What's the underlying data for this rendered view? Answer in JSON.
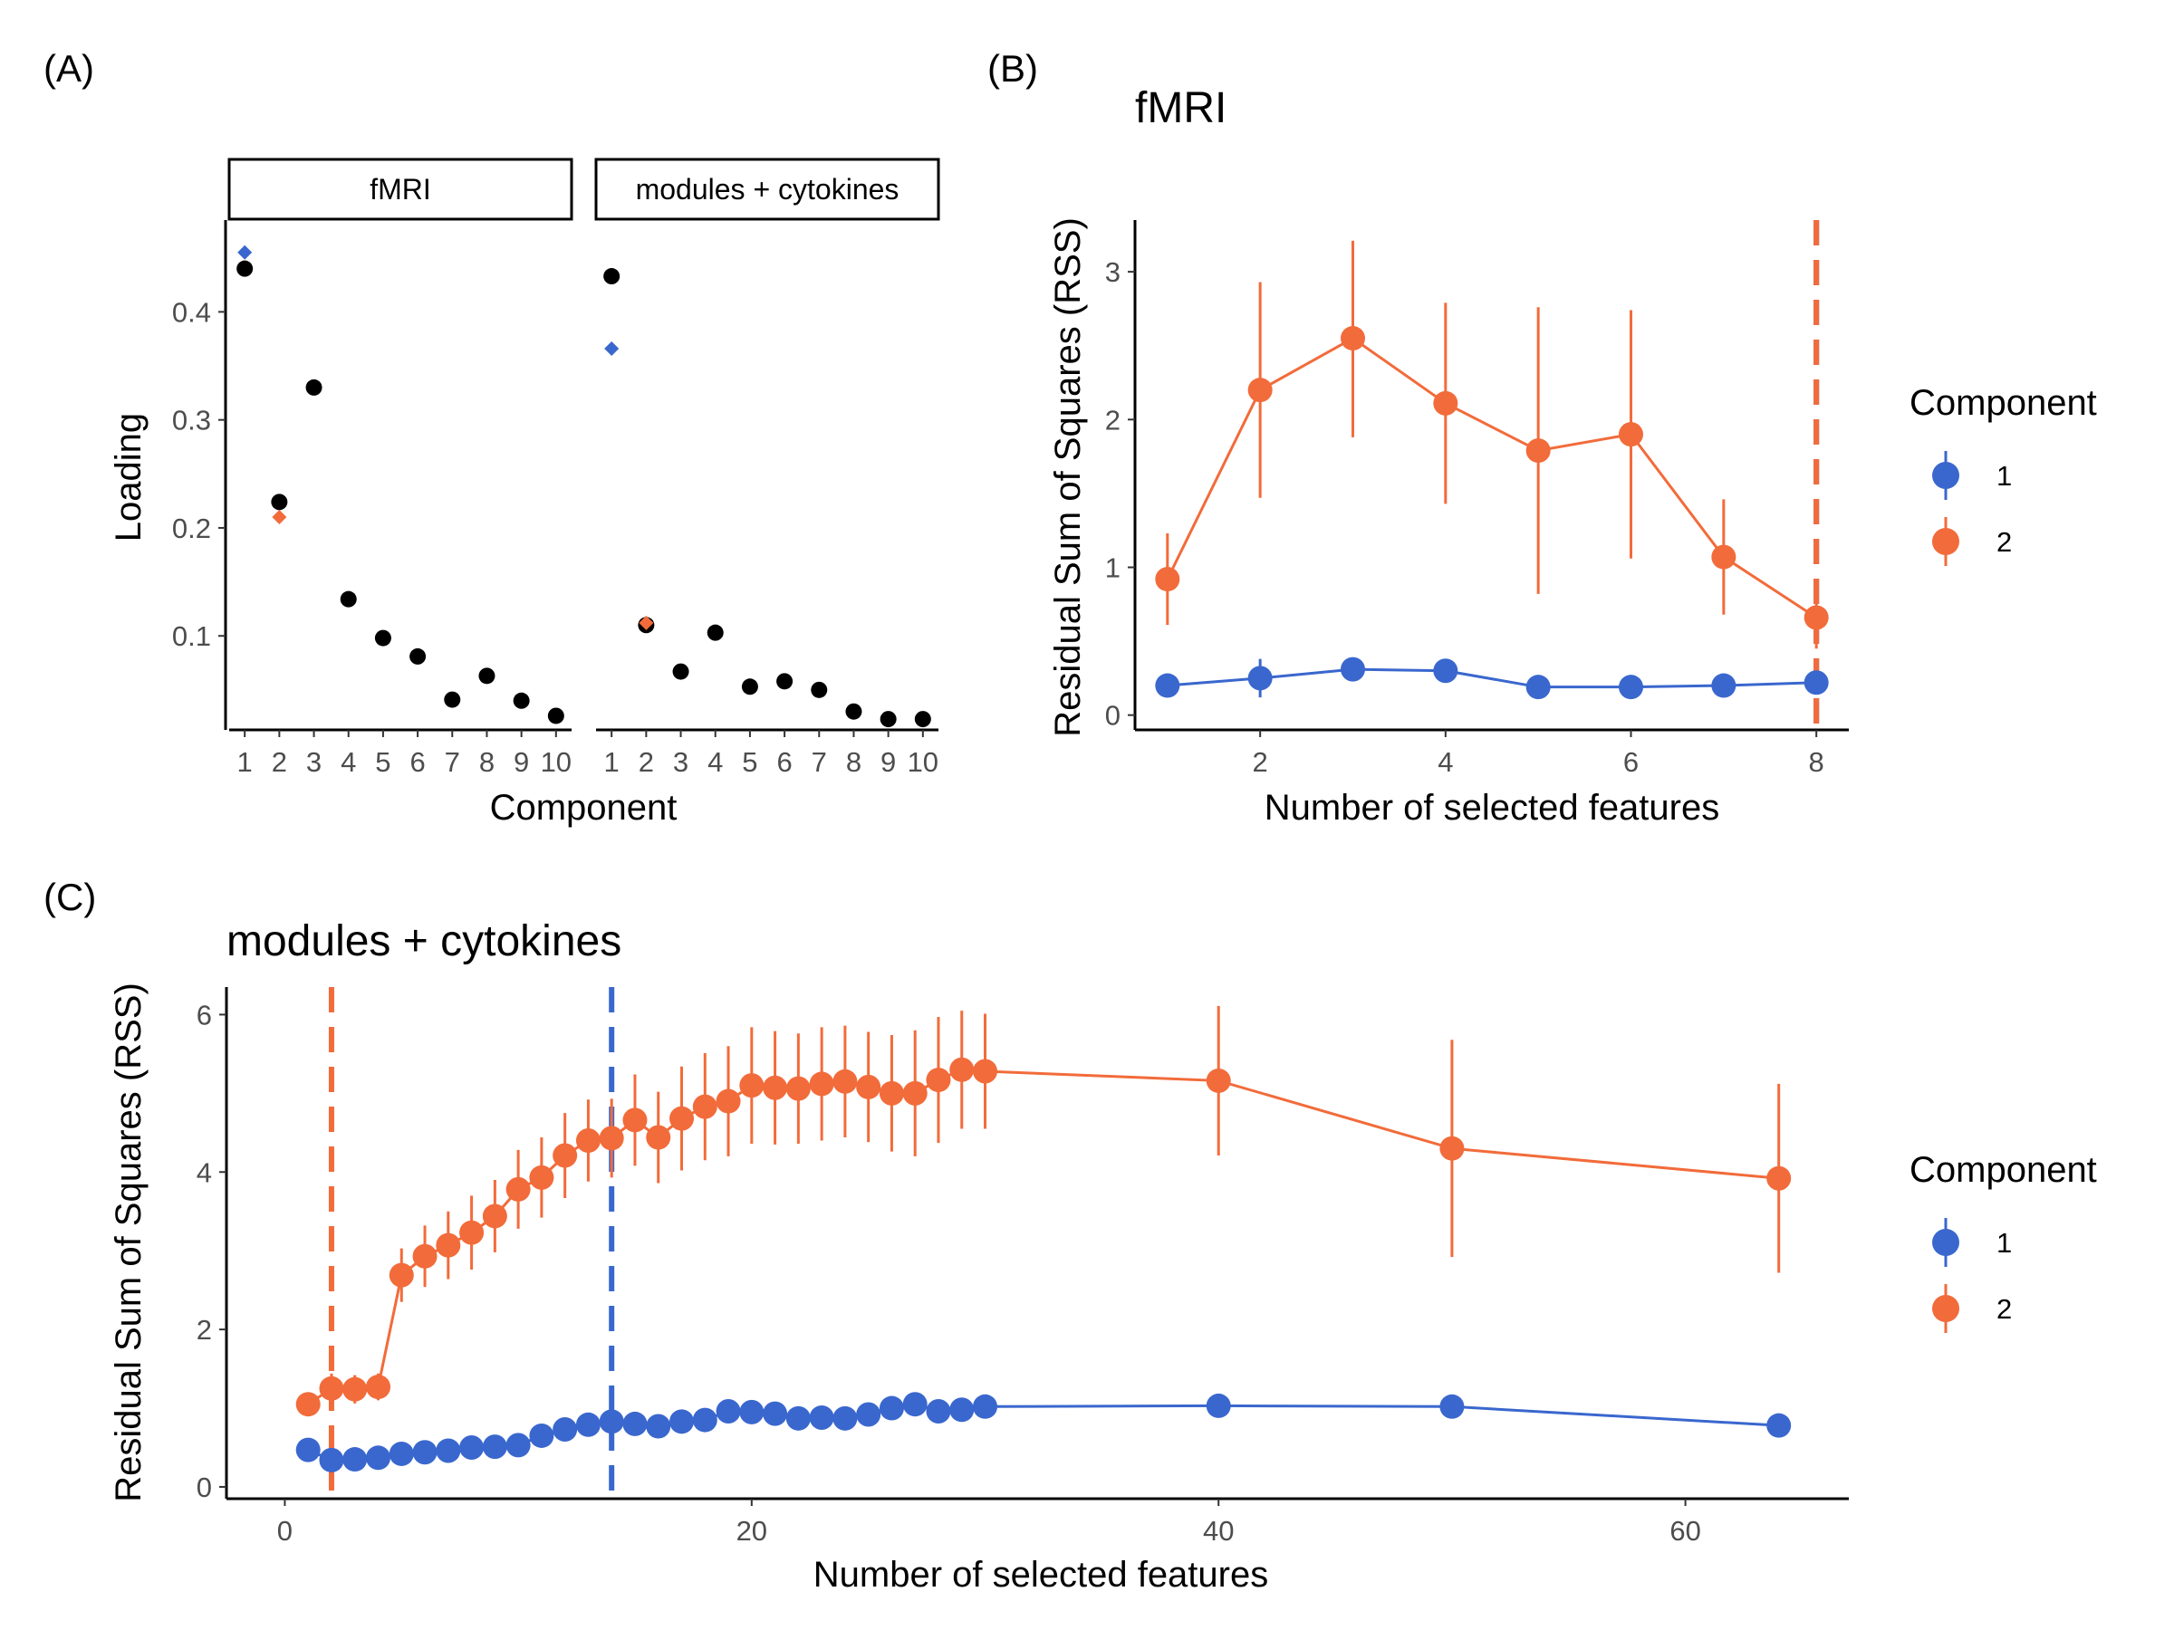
{
  "colors": {
    "comp1": "#3A67CE",
    "comp2": "#F26B3A",
    "loading": "#000000"
  },
  "panel_a": {
    "label": "(A)",
    "xlabel": "Component",
    "ylabel": "Loading",
    "ylim": [
      0.013,
      0.485
    ],
    "yticks": [
      0.1,
      0.2,
      0.3,
      0.4
    ],
    "ytick_labels": [
      "0.1",
      "0.2",
      "0.3",
      "0.4"
    ],
    "xticks": [
      1,
      2,
      3,
      4,
      5,
      6,
      7,
      8,
      9,
      10
    ],
    "xtick_labels": [
      "1",
      "2",
      "3",
      "4",
      "5",
      "6",
      "7",
      "8",
      "9",
      "10"
    ]
  },
  "panel_b": {
    "label": "(B)",
    "title": "fMRI",
    "xlabel": "Number of selected features",
    "ylabel": "Residual Sum of Squares (RSS)",
    "xlim": [
      0.65,
      8.35
    ],
    "ylim": [
      -0.1,
      3.35
    ],
    "xticks": [
      2,
      4,
      6,
      8
    ],
    "xtick_labels": [
      "2",
      "4",
      "6",
      "8"
    ],
    "yticks": [
      0,
      1,
      2,
      3
    ],
    "ytick_labels": [
      "0",
      "1",
      "2",
      "3"
    ],
    "legend": {
      "title": "Component",
      "position": "right",
      "entries": [
        "1",
        "2"
      ]
    }
  },
  "panel_c": {
    "label": "(C)",
    "title": "modules + cytokines",
    "xlabel": "Number of selected features",
    "ylabel": "Residual Sum of Squares (RSS)",
    "xlim": [
      -2.5,
      67
    ],
    "ylim": [
      -0.15,
      6.35
    ],
    "xticks": [
      0,
      20,
      40,
      60
    ],
    "xtick_labels": [
      "0",
      "20",
      "40",
      "60"
    ],
    "yticks": [
      0,
      2,
      4,
      6
    ],
    "ytick_labels": [
      "0",
      "2",
      "4",
      "6"
    ],
    "legend": {
      "title": "Component",
      "position": "right",
      "entries": [
        "1",
        "2"
      ]
    }
  },
  "chart_data": [
    {
      "type": "scatter",
      "panel": "A",
      "facets": [
        {
          "name": "fMRI",
          "x": [
            1,
            2,
            3,
            4,
            5,
            6,
            7,
            8,
            9,
            10
          ],
          "loading": [
            0.44,
            0.224,
            0.33,
            0.134,
            0.098,
            0.081,
            0.041,
            0.063,
            0.04,
            0.026
          ],
          "selected": [
            {
              "component": "1",
              "x": 1,
              "y": 0.455
            },
            {
              "component": "2",
              "x": 2,
              "y": 0.21
            }
          ]
        },
        {
          "name": "modules + cytokines",
          "x": [
            1,
            2,
            3,
            4,
            5,
            6,
            7,
            8,
            9,
            10
          ],
          "loading": [
            0.433,
            0.11,
            0.067,
            0.103,
            0.053,
            0.058,
            0.05,
            0.03,
            0.023,
            0.023
          ],
          "selected": [
            {
              "component": "1",
              "x": 1,
              "y": 0.366
            },
            {
              "component": "2",
              "x": 2,
              "y": 0.112
            }
          ]
        }
      ]
    },
    {
      "type": "line",
      "panel": "B",
      "x": [
        1,
        2,
        3,
        4,
        5,
        6,
        7,
        8
      ],
      "series": [
        {
          "name": "1",
          "values": [
            0.2,
            0.25,
            0.31,
            0.3,
            0.19,
            0.19,
            0.2,
            0.22
          ],
          "lower": [
            0.15,
            0.12,
            0.25,
            0.24,
            0.14,
            0.14,
            0.15,
            0.16
          ],
          "upper": [
            0.25,
            0.38,
            0.37,
            0.36,
            0.24,
            0.24,
            0.25,
            0.28
          ]
        },
        {
          "name": "2",
          "values": [
            0.92,
            2.2,
            2.55,
            2.11,
            1.79,
            1.9,
            1.07,
            0.66
          ],
          "lower": [
            0.61,
            1.47,
            1.88,
            1.43,
            0.82,
            1.06,
            0.68,
            0.45
          ],
          "upper": [
            1.23,
            2.93,
            3.21,
            2.79,
            2.76,
            2.74,
            1.46,
            0.87
          ]
        }
      ],
      "vlines": [
        {
          "series": "1",
          "x": 8
        },
        {
          "series": "2",
          "x": 8
        }
      ]
    },
    {
      "type": "line",
      "panel": "C",
      "x": [
        1,
        2,
        3,
        4,
        5,
        6,
        7,
        8,
        9,
        10,
        11,
        12,
        13,
        14,
        15,
        16,
        17,
        18,
        19,
        20,
        21,
        22,
        23,
        24,
        25,
        26,
        27,
        28,
        29,
        30,
        40,
        50,
        64
      ],
      "series": [
        {
          "name": "1",
          "values": [
            0.47,
            0.34,
            0.35,
            0.37,
            0.42,
            0.44,
            0.46,
            0.5,
            0.51,
            0.53,
            0.65,
            0.73,
            0.79,
            0.83,
            0.8,
            0.77,
            0.83,
            0.85,
            0.96,
            0.95,
            0.93,
            0.87,
            0.88,
            0.87,
            0.92,
            1.0,
            1.05,
            0.96,
            0.98,
            1.02,
            1.03,
            1.02,
            0.78
          ],
          "lower": [
            0.43,
            0.3,
            0.3,
            0.29,
            0.35,
            0.37,
            0.39,
            0.43,
            0.45,
            0.47,
            0.57,
            0.63,
            0.68,
            0.72,
            0.7,
            0.68,
            0.72,
            0.74,
            0.83,
            0.82,
            0.8,
            0.74,
            0.75,
            0.74,
            0.8,
            0.87,
            0.9,
            0.83,
            0.86,
            0.9,
            0.98,
            0.98,
            0.74
          ],
          "upper": [
            0.51,
            0.38,
            0.4,
            0.45,
            0.49,
            0.51,
            0.53,
            0.57,
            0.57,
            0.59,
            0.73,
            0.83,
            0.9,
            0.94,
            0.9,
            0.86,
            0.94,
            0.96,
            1.09,
            1.08,
            1.06,
            1.0,
            1.01,
            1.0,
            1.04,
            1.13,
            1.2,
            1.09,
            1.1,
            1.14,
            1.08,
            1.06,
            0.82
          ]
        },
        {
          "name": "2",
          "values": [
            1.05,
            1.25,
            1.24,
            1.27,
            2.69,
            2.93,
            3.07,
            3.23,
            3.44,
            3.78,
            3.93,
            4.21,
            4.4,
            4.43,
            4.66,
            4.44,
            4.68,
            4.83,
            4.9,
            5.1,
            5.07,
            5.06,
            5.12,
            5.15,
            5.08,
            5.0,
            5.0,
            5.17,
            5.3,
            5.28,
            5.16,
            4.3,
            3.92
          ],
          "lower": [
            0.98,
            1.06,
            1.06,
            1.1,
            2.35,
            2.54,
            2.64,
            2.76,
            2.98,
            3.28,
            3.42,
            3.67,
            3.88,
            3.93,
            4.08,
            3.86,
            4.02,
            4.15,
            4.2,
            4.36,
            4.35,
            4.36,
            4.4,
            4.44,
            4.38,
            4.26,
            4.2,
            4.37,
            4.55,
            4.55,
            4.21,
            2.92,
            2.72
          ],
          "upper": [
            1.12,
            1.44,
            1.42,
            1.44,
            3.03,
            3.32,
            3.5,
            3.7,
            3.9,
            4.28,
            4.44,
            4.75,
            4.92,
            4.93,
            5.24,
            5.02,
            5.34,
            5.51,
            5.6,
            5.84,
            5.79,
            5.76,
            5.84,
            5.86,
            5.78,
            5.74,
            5.8,
            5.97,
            6.05,
            6.01,
            6.11,
            5.68,
            5.12
          ]
        }
      ],
      "vlines": [
        {
          "series": "1",
          "x": 14
        },
        {
          "series": "2",
          "x": 2
        }
      ]
    }
  ]
}
